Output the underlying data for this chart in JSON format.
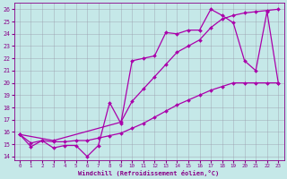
{
  "xlabel": "Windchill (Refroidissement éolien,°C)",
  "bg_color": "#c5e8e8",
  "line_color": "#aa00aa",
  "grid_color": "#9999aa",
  "font_color": "#880088",
  "xlim": [
    -0.5,
    23.5
  ],
  "ylim": [
    13.7,
    26.5
  ],
  "yticks": [
    14,
    15,
    16,
    17,
    18,
    19,
    20,
    21,
    22,
    23,
    24,
    25,
    26
  ],
  "xticks": [
    0,
    1,
    2,
    3,
    4,
    5,
    6,
    7,
    8,
    9,
    10,
    11,
    12,
    13,
    14,
    15,
    16,
    17,
    18,
    19,
    20,
    21,
    22,
    23
  ],
  "line1_x": [
    0,
    1,
    2,
    3,
    4,
    5,
    6,
    7,
    8,
    9,
    10,
    11,
    12,
    13,
    14,
    15,
    16,
    17,
    18,
    19,
    20,
    21,
    22,
    23
  ],
  "line1_y": [
    15.8,
    14.8,
    15.3,
    14.7,
    14.9,
    14.9,
    14.0,
    14.9,
    18.4,
    16.7,
    21.8,
    22.0,
    22.2,
    24.1,
    24.0,
    24.3,
    24.3,
    26.0,
    25.5,
    24.9,
    21.8,
    21.0,
    25.8,
    20.0
  ],
  "line2_x": [
    0,
    3,
    9,
    10,
    11,
    12,
    13,
    14,
    15,
    16,
    17,
    18,
    19,
    20,
    21,
    22,
    23
  ],
  "line2_y": [
    15.8,
    15.3,
    16.8,
    18.5,
    19.5,
    20.5,
    21.5,
    22.5,
    23.0,
    23.5,
    24.5,
    25.2,
    25.5,
    25.7,
    25.8,
    25.9,
    26.0
  ],
  "line3_x": [
    0,
    1,
    2,
    3,
    4,
    5,
    6,
    7,
    8,
    9,
    10,
    11,
    12,
    13,
    14,
    15,
    16,
    17,
    18,
    19,
    20,
    21,
    22,
    23
  ],
  "line3_y": [
    15.8,
    15.1,
    15.3,
    15.2,
    15.2,
    15.3,
    15.3,
    15.5,
    15.7,
    15.9,
    16.3,
    16.7,
    17.2,
    17.7,
    18.2,
    18.6,
    19.0,
    19.4,
    19.7,
    20.0,
    20.0,
    20.0,
    20.0,
    20.0
  ],
  "markersize": 2.0,
  "linewidth": 0.9
}
